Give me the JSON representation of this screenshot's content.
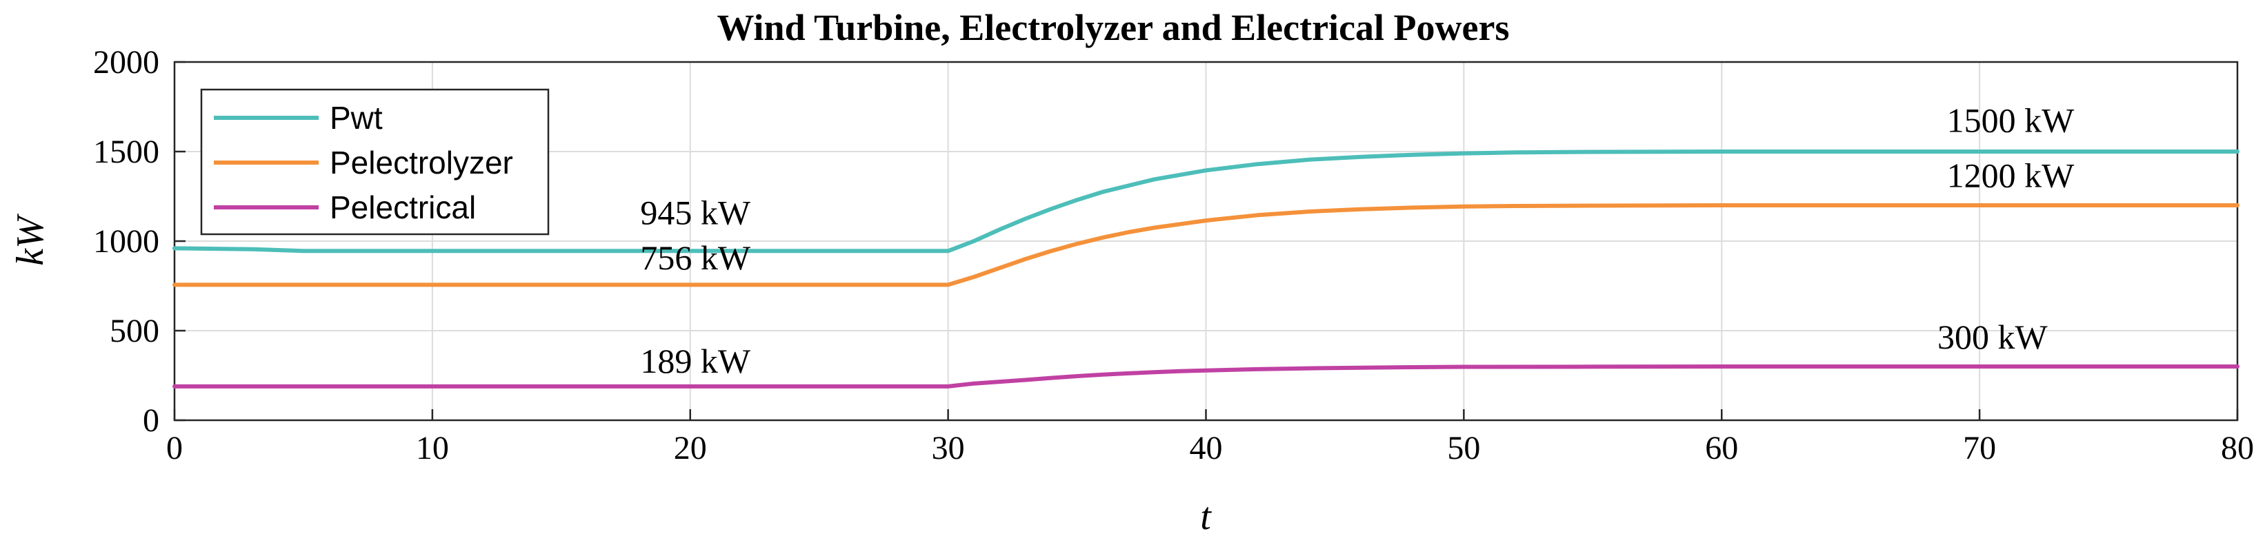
{
  "chart_data": {
    "type": "line",
    "title": "Wind Turbine, Electrolyzer and Electrical Powers",
    "xlabel": "t",
    "ylabel": "kW",
    "xlim": [
      0,
      80
    ],
    "ylim": [
      0,
      2000
    ],
    "xticks": [
      0,
      10,
      20,
      30,
      40,
      50,
      60,
      70,
      80
    ],
    "yticks": [
      0,
      500,
      1000,
      1500,
      2000
    ],
    "grid": true,
    "legend_position": "top-left",
    "series": [
      {
        "name": "Pwt",
        "color": "#4dbeb9",
        "x": [
          0,
          3,
          5,
          10,
          20,
          29.5,
          30,
          31,
          32,
          33,
          34,
          35,
          36,
          37,
          38,
          39,
          40,
          42,
          44,
          46,
          48,
          50,
          52,
          55,
          60,
          70,
          80
        ],
        "y": [
          960,
          955,
          945,
          945,
          945,
          945,
          945,
          1000,
          1065,
          1125,
          1180,
          1230,
          1275,
          1310,
          1345,
          1370,
          1395,
          1430,
          1455,
          1470,
          1482,
          1490,
          1495,
          1498,
          1500,
          1500,
          1500
        ]
      },
      {
        "name": "Pelectrolyzer",
        "color": "#f4913a",
        "x": [
          0,
          10,
          20,
          29.5,
          30,
          31,
          32,
          33,
          34,
          35,
          36,
          37,
          38,
          39,
          40,
          42,
          44,
          46,
          48,
          50,
          52,
          55,
          60,
          70,
          80
        ],
        "y": [
          756,
          756,
          756,
          756,
          756,
          800,
          850,
          900,
          945,
          985,
          1020,
          1050,
          1075,
          1095,
          1115,
          1145,
          1165,
          1178,
          1187,
          1193,
          1196,
          1198,
          1200,
          1200,
          1200
        ]
      },
      {
        "name": "Pelectrical",
        "color": "#c041a3",
        "x": [
          0,
          10,
          20,
          29.5,
          30,
          31,
          32,
          33,
          34,
          35,
          36,
          37,
          38,
          39,
          40,
          42,
          44,
          46,
          48,
          50,
          55,
          60,
          70,
          80
        ],
        "y": [
          189,
          189,
          189,
          189,
          189,
          205,
          215,
          225,
          236,
          246,
          255,
          262,
          268,
          274,
          278,
          285,
          290,
          293,
          296,
          298,
          299,
          300,
          300,
          300
        ]
      }
    ],
    "annotations": [
      {
        "text": "945 kW",
        "x": 20.2,
        "y": 1095
      },
      {
        "text": "756 kW",
        "x": 20.2,
        "y": 843
      },
      {
        "text": "189 kW",
        "x": 20.2,
        "y": 265
      },
      {
        "text": "1500 kW",
        "x": 71.2,
        "y": 1610
      },
      {
        "text": "1200 kW",
        "x": 71.2,
        "y": 1302
      },
      {
        "text": "300 kW",
        "x": 70.5,
        "y": 400
      }
    ]
  }
}
